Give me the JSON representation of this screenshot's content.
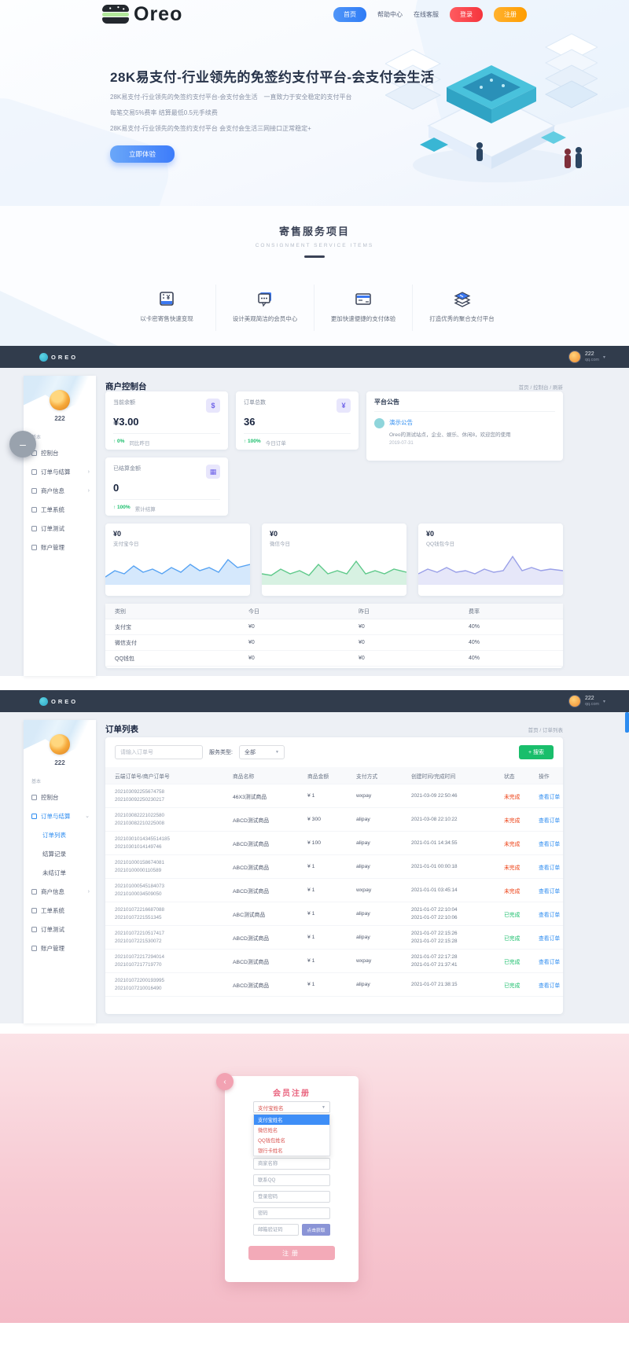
{
  "header": {
    "brand": "Oreo",
    "nav_home": "首页",
    "nav_help": "帮助中心",
    "nav_service": "在线客服",
    "nav_login": "登录",
    "nav_register": "注册"
  },
  "hero": {
    "title": "28K易支付-行业领先的免签约支付平台-会支付会生活",
    "lines": [
      "28K易支付-行业领先的免签约支付平台-会支付会生活　一直致力于安全稳定的支付平台",
      "每笔交易5%费率 结算最低0.5元手续费",
      "28K易支付-行业领先的免签约支付平台 会支付会生活三网接口正常稳定+"
    ],
    "cta": "立即体验"
  },
  "services": {
    "title": "寄售服务项目",
    "subtitle": "CONSIGNMENT SERVICE ITEMS",
    "items": [
      {
        "icon": "ticket-icon",
        "label": "以卡密寄售快速变现"
      },
      {
        "icon": "chat-icon",
        "label": "设计美观简洁的会员中心"
      },
      {
        "icon": "card-icon",
        "label": "更加快速便捷的支付体验"
      },
      {
        "icon": "layers-icon",
        "label": "打造优秀的聚合支付平台"
      }
    ]
  },
  "dash1": {
    "navbar": {
      "brand": "OREO",
      "user": "222",
      "user_sub": "qq.com"
    },
    "sidebar": {
      "user": "222",
      "section": "基本",
      "items": [
        {
          "label": "控制台"
        },
        {
          "label": "订单与结算",
          "arrow": "›"
        },
        {
          "label": "商户信息",
          "arrow": "›"
        },
        {
          "label": "工单系统"
        },
        {
          "label": "订单测试"
        },
        {
          "label": "账户管理"
        }
      ]
    },
    "collapse_glyph": "–",
    "page_title": "商户控制台",
    "breadcrumb": "首页 / 控制台 / 刷新",
    "stats": [
      {
        "label": "当前余额",
        "value": "¥3.00",
        "icon_glyph": "$",
        "trend": "↑ 0%",
        "trend_label": "同比昨日"
      },
      {
        "label": "订单总数",
        "value": "36",
        "icon_glyph": "¥",
        "trend": "↑ 100%",
        "trend_label": "今日订单"
      },
      {
        "label": "已结算金额",
        "value": "0",
        "icon_glyph": "▦",
        "trend": "↑ 100%",
        "trend_label": "累计结算"
      }
    ],
    "notice": {
      "title": "平台公告",
      "item_title": "演示公告",
      "item_body": "Oreo的测试站点，企业、娱乐、休闲8，欢迎您的使用",
      "item_date": "2019-07-31"
    },
    "charts": [
      {
        "amount": "¥0",
        "label": "支付宝今日",
        "color": "#57a3f3",
        "state": "c-blue",
        "spark": "0,34 12,26 24,30 36,20 48,28 60,24 72,30 84,22 96,28 108,18 120,26 132,22 144,28 156,12 168,22 184,18",
        "spark_fill": "0,34 12,26 24,30 36,20 48,28 60,24 72,30 84,22 96,28 108,18 120,26 132,22 144,28 156,12 168,22 184,18 184,44 0,44"
      },
      {
        "amount": "¥0",
        "label": "微信今日",
        "color": "#5ec98a",
        "state": "c-green",
        "spark": "0,30 12,32 24,24 36,30 48,26 60,32 72,18 84,30 96,26 108,30 120,14 132,30 144,26 156,30 168,24 184,28",
        "spark_fill": "0,30 12,32 24,24 36,30 48,26 60,32 72,18 84,30 96,26 108,30 120,14 132,30 144,26 156,30 168,24 184,28 184,44 0,44"
      },
      {
        "amount": "¥0",
        "label": "QQ钱包今日",
        "color": "#9aa0e8",
        "state": "c-purple",
        "spark": "0,30 12,24 24,28 36,22 48,28 60,26 72,30 84,24 96,28 108,26 120,8 132,26 144,22 156,26 168,24 184,26",
        "spark_fill": "0,30 12,24 24,28 36,22 48,28 60,26 72,30 84,24 96,28 108,26 120,8 132,26 144,22 156,26 168,24 184,26 184,44 0,44"
      }
    ],
    "table": {
      "headers": [
        "类别",
        "今日",
        "昨日",
        "费率"
      ],
      "rows": [
        {
          "name": "支付宝",
          "today": "¥0",
          "yesterday": "¥0",
          "rate": "40%"
        },
        {
          "name": "微信支付",
          "today": "¥0",
          "yesterday": "¥0",
          "rate": "40%"
        },
        {
          "name": "QQ钱包",
          "today": "¥0",
          "yesterday": "¥0",
          "rate": "40%"
        }
      ]
    }
  },
  "dash2": {
    "navbar": {
      "brand": "OREO",
      "user": "222",
      "user_sub": "qq.com"
    },
    "sidebar": {
      "user": "222",
      "section": "基本",
      "items": [
        {
          "label": "控制台",
          "state": ""
        },
        {
          "label": "订单与结算",
          "state": "active",
          "arrow": "⌄"
        },
        {
          "label": "订单列表",
          "state": "child active"
        },
        {
          "label": "结算记录",
          "state": "child"
        },
        {
          "label": "未结订单",
          "state": "child"
        },
        {
          "label": "商户信息",
          "state": "",
          "arrow": "›"
        },
        {
          "label": "工单系统",
          "state": ""
        },
        {
          "label": "订单测试",
          "state": ""
        },
        {
          "label": "账户管理",
          "state": ""
        }
      ]
    },
    "page_title": "订单列表",
    "breadcrumb": "首页 / 订单列表",
    "toolbar": {
      "search_placeholder": "请输入订单号",
      "filter_label": "服务类型:",
      "filter_value": "全部",
      "search_button": "+ 搜索"
    },
    "table": {
      "headers": [
        "云端订单号/商户订单号",
        "商品名称",
        "商品金额",
        "支付方式",
        "创建时间/完成时间",
        "状态",
        "操作"
      ],
      "rows": [
        {
          "no1": "202103092255674758",
          "no2": "202103092250230217",
          "product": "46X3测试商品",
          "amount": "¥ 1",
          "pay": "wxpay",
          "time1": "2021-03-09 22:50:46",
          "time2": "",
          "status": "未完成",
          "state": "pending",
          "action": "查看订单"
        },
        {
          "no1": "202103082221022580",
          "no2": "202103082210225008",
          "product": "ABCD测试商品",
          "amount": "¥ 300",
          "pay": "alipay",
          "time1": "2021-03-08 22:10:22",
          "time2": "",
          "status": "未完成",
          "state": "pending",
          "action": "查看订单"
        },
        {
          "no1": "20210301014345514185",
          "no2": "20210301014149746",
          "product": "ABCD测试商品",
          "amount": "¥ 100",
          "pay": "alipay",
          "time1": "2021-01-01 14:34:55",
          "time2": "",
          "status": "未完成",
          "state": "pending",
          "action": "查看订单"
        },
        {
          "no1": "202101000158674081",
          "no2": "20210100000110589",
          "product": "ABCD测试商品",
          "amount": "¥ 1",
          "pay": "alipay",
          "time1": "2021-01-01 00:00:18",
          "time2": "",
          "status": "未完成",
          "state": "pending",
          "action": "查看订单"
        },
        {
          "no1": "202101000545184073",
          "no2": "20210100034509050",
          "product": "ABCD测试商品",
          "amount": "¥ 1",
          "pay": "wxpay",
          "time1": "2021-01-01 03:45:14",
          "time2": "",
          "status": "未完成",
          "state": "pending",
          "action": "查看订单"
        },
        {
          "no1": "202101072216687088",
          "no2": "20210107221551345",
          "product": "ABC测试商品",
          "amount": "¥ 1",
          "pay": "alipay",
          "time1": "2021-01-07 22:10:04",
          "time2": "2021-01-07 22:10:06",
          "status": "已完成",
          "state": "done",
          "action": "查看订单"
        },
        {
          "no1": "202101072210517417",
          "no2": "20210107221530072",
          "product": "ABCD测试商品",
          "amount": "¥ 1",
          "pay": "alipay",
          "time1": "2021-01-07 22:15:26",
          "time2": "2021-01-07 22:15:28",
          "status": "已完成",
          "state": "done",
          "action": "查看订单"
        },
        {
          "no1": "202101072217294014",
          "no2": "20210107217719770",
          "product": "ABCD测试商品",
          "amount": "¥ 1",
          "pay": "wxpay",
          "time1": "2021-01-07 22:17:28",
          "time2": "2021-01-07 21:37:41",
          "status": "已完成",
          "state": "done",
          "action": "查看订单"
        },
        {
          "no1": "202101072200193995",
          "no2": "20210107210016490",
          "product": "ABCD测试商品",
          "amount": "¥ 1",
          "pay": "alipay",
          "time1": "2021-01-07 21:38:15",
          "time2": "",
          "status": "已完成",
          "state": "done",
          "action": "查看订单"
        }
      ]
    }
  },
  "register": {
    "back_glyph": "‹",
    "title": "会员注册",
    "select_value": "支付宝姓名",
    "select_options": [
      {
        "label": "支付宝姓名",
        "state": "sel"
      },
      {
        "label": "微信姓名",
        "state": ""
      },
      {
        "label": "QQ钱包姓名",
        "state": ""
      },
      {
        "label": "银行卡姓名",
        "state": ""
      }
    ],
    "fields": [
      {
        "placeholder": "商家名称"
      },
      {
        "placeholder": "联系QQ"
      },
      {
        "placeholder": "登录密码"
      },
      {
        "placeholder": "密码"
      }
    ],
    "captcha_placeholder": "邮箱验证码",
    "captcha_button": "点击获取",
    "submit": "注册"
  }
}
